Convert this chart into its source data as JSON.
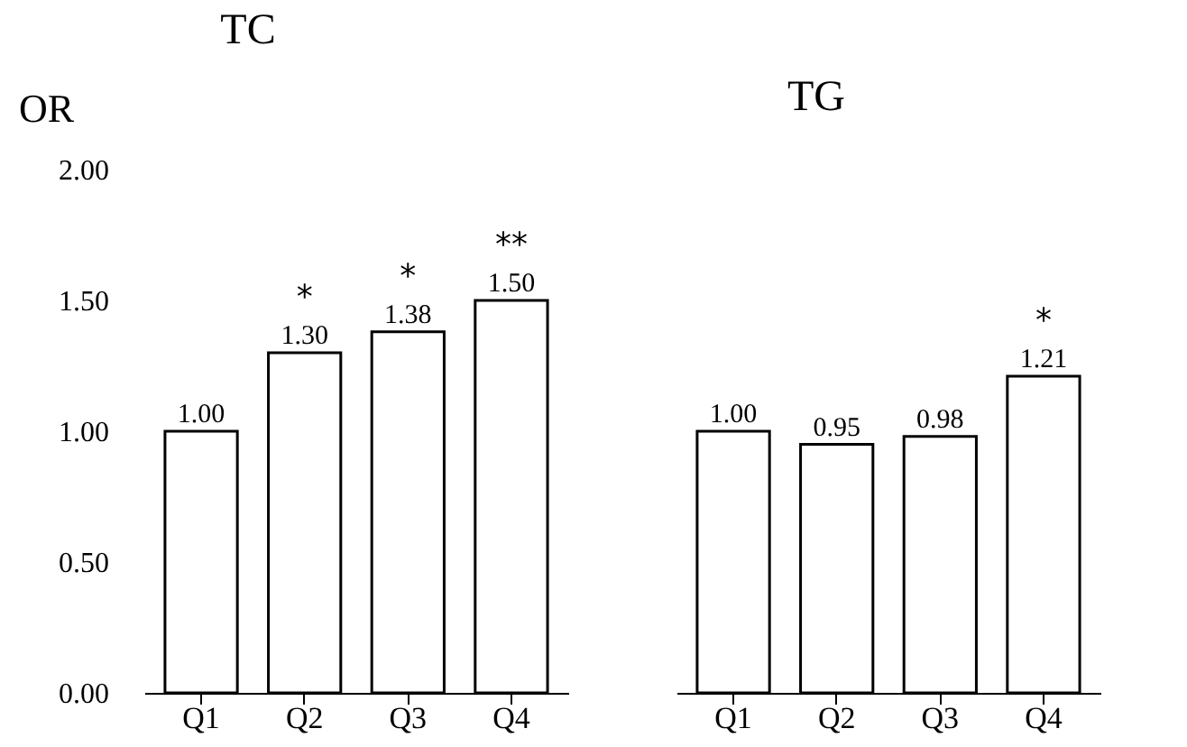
{
  "chart_data": [
    {
      "type": "bar",
      "title": "TC",
      "ylabel": "OR",
      "categories": [
        "Q1",
        "Q2",
        "Q3",
        "Q4"
      ],
      "values": [
        1.0,
        1.3,
        1.38,
        1.5
      ],
      "color": "#ffffff",
      "ylim": [
        0,
        2
      ],
      "yticks": [
        {
          "value": 0,
          "label": "0.00"
        },
        {
          "value": 0.5,
          "label": "0.50"
        },
        {
          "value": 1,
          "label": "1.00"
        },
        {
          "value": 1.5,
          "label": "1.50"
        },
        {
          "value": 2,
          "label": "2.00"
        }
      ],
      "value_labels": [
        "1.00",
        "1.30",
        "1.38",
        "1.50"
      ],
      "annotations": [
        {
          "text": "*",
          "x": "Q2",
          "y": 1.3
        },
        {
          "text": "*",
          "x": "Q3",
          "y": 1.38
        },
        {
          "text": "**",
          "x": "Q4",
          "y": 1.5
        }
      ],
      "grid": false
    },
    {
      "type": "bar",
      "title": "TG",
      "categories": [
        "Q1",
        "Q2",
        "Q3",
        "Q4"
      ],
      "values": [
        1.0,
        0.95,
        0.98,
        1.21
      ],
      "color": "#ffffff",
      "ylim": [
        0,
        2
      ],
      "value_labels": [
        "1.00",
        "0.95",
        "0.98",
        "1.21"
      ],
      "annotations": [
        {
          "text": "*",
          "x": "Q4",
          "y": 1.21
        }
      ],
      "grid": false,
      "tick_labels": "x"
    }
  ]
}
